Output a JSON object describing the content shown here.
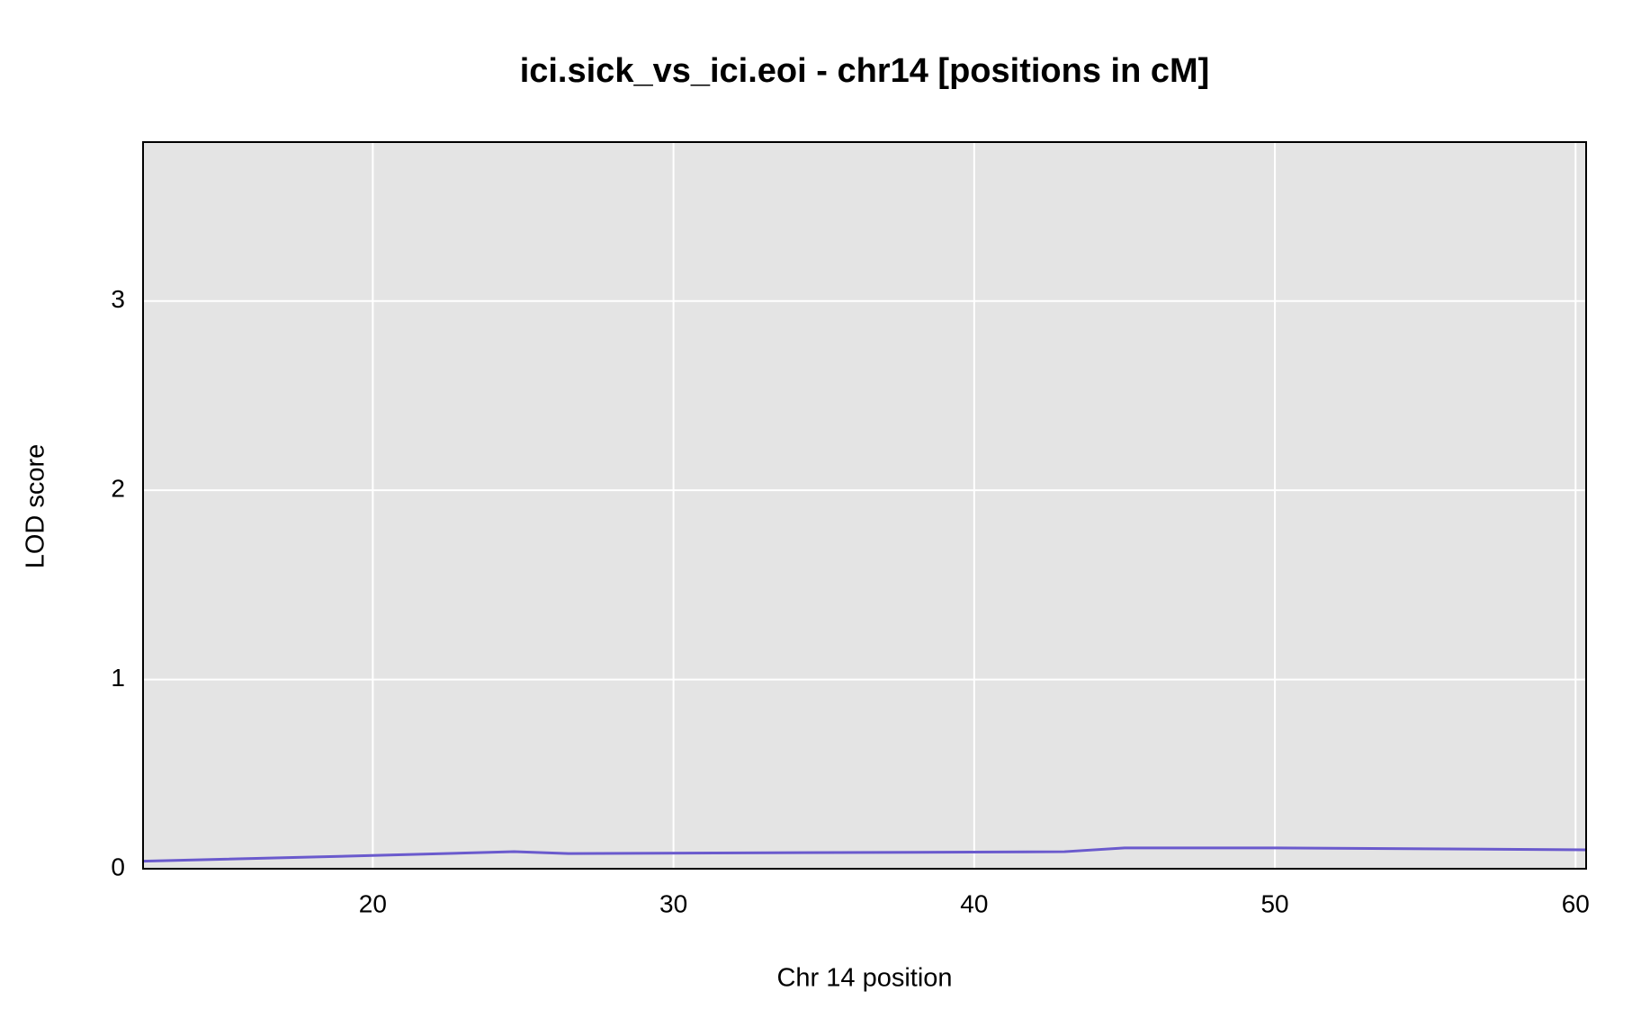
{
  "chart_data": {
    "type": "line",
    "title": "ici.sick_vs_ici.eoi - chr14 [positions in cM]",
    "x_label": "Chr 14 position",
    "y_label": "LOD score",
    "series": [
      {
        "color": "#6a5acd",
        "x": [
          12.36,
          20,
          24.7,
          26.5,
          43,
          45,
          50,
          60.35
        ],
        "values": [
          0.04,
          0.07,
          0.09,
          0.08,
          0.09,
          0.11,
          0.11,
          0.1
        ]
      }
    ],
    "xlim": [
      12.36,
      60.35
    ],
    "xticks": [
      20,
      30,
      40,
      50,
      60
    ],
    "ylim": [
      0,
      3.84
    ],
    "yticks": [
      0,
      1,
      2,
      3
    ],
    "grid": true
  }
}
